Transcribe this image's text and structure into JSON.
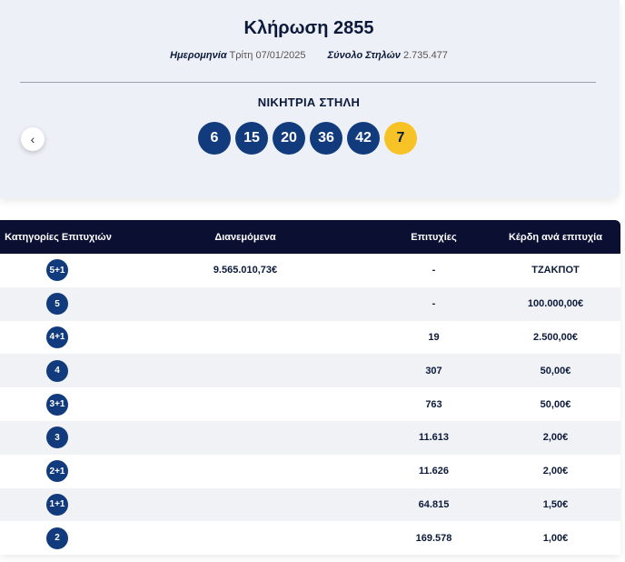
{
  "draw": {
    "title": "Κλήρωση 2855",
    "date_label": "Ημερομηνία",
    "date_value": "Τρίτη 07/01/2025",
    "total_label": "Σύνολο Στηλών",
    "total_value": "2.735.477",
    "winning_label": "ΝΙΚΗΤΡΙΑ ΣΤΗΛΗ",
    "numbers": [
      "6",
      "15",
      "20",
      "36",
      "42"
    ],
    "bonus": "7",
    "prev_icon": "‹"
  },
  "table": {
    "headers": [
      "Κατηγορίες Επιτυχιών",
      "Διανεμόμενα",
      "Επιτυχίες",
      "Κέρδη ανά επιτυχία"
    ],
    "rows": [
      {
        "category": "5+1",
        "distributed": "9.565.010,73€",
        "winners": "-",
        "prize": "ΤΖΑΚΠΟΤ"
      },
      {
        "category": "5",
        "distributed": "",
        "winners": "-",
        "prize": "100.000,00€"
      },
      {
        "category": "4+1",
        "distributed": "",
        "winners": "19",
        "prize": "2.500,00€"
      },
      {
        "category": "4",
        "distributed": "",
        "winners": "307",
        "prize": "50,00€"
      },
      {
        "category": "3+1",
        "distributed": "",
        "winners": "763",
        "prize": "50,00€"
      },
      {
        "category": "3",
        "distributed": "",
        "winners": "11.613",
        "prize": "2,00€"
      },
      {
        "category": "2+1",
        "distributed": "",
        "winners": "11.626",
        "prize": "2,00€"
      },
      {
        "category": "1+1",
        "distributed": "",
        "winners": "64.815",
        "prize": "1,50€"
      },
      {
        "category": "2",
        "distributed": "",
        "winners": "169.578",
        "prize": "1,00€"
      }
    ]
  },
  "colors": {
    "ball_blue": "#123b7d",
    "ball_yellow": "#f6c226",
    "header_dark": "#0b1033"
  }
}
